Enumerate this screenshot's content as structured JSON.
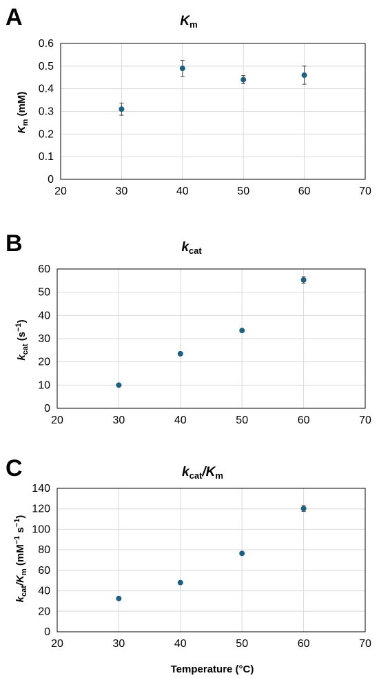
{
  "chart_data": [
    {
      "panel": "A",
      "type": "scatter",
      "title_main": "K",
      "title_sub": "m",
      "ylabel_main": "K",
      "ylabel_sub": "m",
      "ylabel_rest": " (mM)",
      "xlim": [
        20,
        70
      ],
      "ylim": [
        0,
        0.6
      ],
      "xticks": [
        "20",
        "30",
        "40",
        "50",
        "60",
        "70"
      ],
      "yticks": [
        "0",
        "0.1",
        "0.2",
        "0.3",
        "0.4",
        "0.5",
        "0.6"
      ],
      "x": [
        30,
        40,
        50,
        60
      ],
      "y": [
        0.31,
        0.49,
        0.44,
        0.46
      ],
      "err": [
        0.027,
        0.035,
        0.018,
        0.04
      ],
      "grid": true,
      "color": "#1f5f7f"
    },
    {
      "panel": "B",
      "type": "scatter",
      "title_main": "k",
      "title_sub": "cat",
      "ylabel_main": "k",
      "ylabel_sub": "cat",
      "ylabel_rest": " (s",
      "ylabel_sup": "−1",
      "ylabel_end": ")",
      "xlim": [
        20,
        70
      ],
      "ylim": [
        0,
        60
      ],
      "xticks": [
        "20",
        "30",
        "40",
        "50",
        "60",
        "70"
      ],
      "yticks": [
        "0",
        "10",
        "20",
        "30",
        "40",
        "50",
        "60"
      ],
      "x": [
        30,
        40,
        50,
        60
      ],
      "y": [
        10,
        23.5,
        33.5,
        55.3
      ],
      "err": [
        0.3,
        0.4,
        0.4,
        1.4
      ],
      "grid": true,
      "color": "#1f5f7f"
    },
    {
      "panel": "C",
      "type": "scatter",
      "title_main": "k",
      "title_sub": "cat",
      "title_mid": "/K",
      "title_sub2": "m",
      "ylabel_main": "k",
      "ylabel_sub": "cat",
      "ylabel_mid": "/K",
      "ylabel_sub2": "m",
      "ylabel_rest": " (mM",
      "ylabel_sup": "−1",
      "ylabel_rest2": " s",
      "ylabel_sup2": "−1",
      "ylabel_end": ")",
      "xlabel": "Temperature (°C)",
      "xlim": [
        20,
        70
      ],
      "ylim": [
        0,
        140
      ],
      "xticks": [
        "20",
        "30",
        "40",
        "50",
        "60",
        "70"
      ],
      "yticks": [
        "0",
        "20",
        "40",
        "60",
        "80",
        "100",
        "120",
        "140"
      ],
      "x": [
        30,
        40,
        50,
        60
      ],
      "y": [
        32.5,
        48,
        76.5,
        120.3
      ],
      "err": [
        0.6,
        0.7,
        1.0,
        2.8
      ],
      "grid": true,
      "color": "#1f5f7f"
    }
  ]
}
